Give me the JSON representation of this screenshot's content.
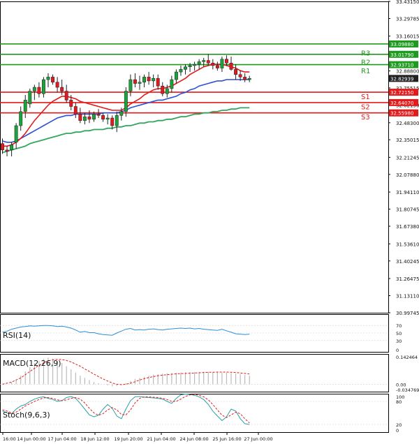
{
  "colors": {
    "bull": "#19a33a",
    "bear": "#e4191d",
    "wick": "#222222",
    "resistance": "#1e9b1e",
    "support": "#e41a1a",
    "ma_fast": "#e41a1a",
    "ma_mid": "#2d4fd6",
    "ma_slow": "#33a55c",
    "rsi": "#2b8fd6",
    "macd_hist": "#bbbbbb",
    "macd_signal": "#e41a1a",
    "stoch_main": "#2aa0a8",
    "stoch_signal": "#e41a1a",
    "axis_text": "#111111",
    "frame": "#000000"
  },
  "chart_data": {
    "type": "candlestick",
    "title": "",
    "x_ticks": [
      "16:00",
      "14 Jun 00:00",
      "17 Jun 04:00",
      "18 Jun 12:00",
      "19 Jun 20:00",
      "21 Jun 04:00",
      "24 Jun 08:00",
      "25 Jun 16:00",
      "27 Jun 00:00"
    ],
    "y_ticks": [
      "33.43150",
      "33.29785",
      "33.16015",
      "32.88800",
      "32.75515",
      "32.62150",
      "32.48300",
      "32.35015",
      "32.21245",
      "32.07880",
      "31.94110",
      "31.80745",
      "31.67380",
      "31.53610",
      "31.40245",
      "31.26475",
      "31.13110",
      "30.99745"
    ],
    "y_range": [
      30.99745,
      33.4315
    ],
    "price_levels": [
      {
        "name": "R3",
        "value": 33.0179,
        "kind": "resistance",
        "price_label": "33.01790"
      },
      {
        "name": "R2",
        "value": 32.9371,
        "kind": "resistance",
        "price_label": "32.93710"
      },
      {
        "name": "S1",
        "value": 32.7215,
        "kind": "support",
        "price_label": "32.72150"
      },
      {
        "name": "S2",
        "value": 32.6407,
        "kind": "support",
        "price_label": "32.64070"
      },
      {
        "name": "S3",
        "value": 32.5598,
        "kind": "support",
        "price_label": "32.55980"
      }
    ],
    "level_name_positions": [
      {
        "name": "R3",
        "value": 33.03
      },
      {
        "name": "R2",
        "value": 32.96
      },
      {
        "name": "R1",
        "value": 32.89
      },
      {
        "name": "S1",
        "value": 32.69
      },
      {
        "name": "S2",
        "value": 32.61
      },
      {
        "name": "S3",
        "value": 32.53
      }
    ],
    "extra_lines": [
      {
        "value": 33.0988,
        "price_label": "33.09880",
        "kind": "resistance"
      }
    ],
    "current_price": {
      "value": 32.82939,
      "price_label": "32.82939"
    },
    "candles": [
      {
        "o": 32.32,
        "h": 32.36,
        "l": 32.24,
        "c": 32.27
      },
      {
        "o": 32.27,
        "h": 32.3,
        "l": 32.22,
        "c": 32.26
      },
      {
        "o": 32.27,
        "h": 32.33,
        "l": 32.22,
        "c": 32.31
      },
      {
        "o": 32.33,
        "h": 32.48,
        "l": 32.28,
        "c": 32.46
      },
      {
        "o": 32.46,
        "h": 32.61,
        "l": 32.42,
        "c": 32.57
      },
      {
        "o": 32.57,
        "h": 32.7,
        "l": 32.52,
        "c": 32.66
      },
      {
        "o": 32.63,
        "h": 32.75,
        "l": 32.6,
        "c": 32.73
      },
      {
        "o": 32.73,
        "h": 32.78,
        "l": 32.66,
        "c": 32.76
      },
      {
        "o": 32.76,
        "h": 32.8,
        "l": 32.68,
        "c": 32.71
      },
      {
        "o": 32.71,
        "h": 32.84,
        "l": 32.68,
        "c": 32.82
      },
      {
        "o": 32.82,
        "h": 32.87,
        "l": 32.76,
        "c": 32.84
      },
      {
        "o": 32.84,
        "h": 32.86,
        "l": 32.78,
        "c": 32.8
      },
      {
        "o": 32.8,
        "h": 32.84,
        "l": 32.72,
        "c": 32.76
      },
      {
        "o": 32.76,
        "h": 32.82,
        "l": 32.7,
        "c": 32.73
      },
      {
        "o": 32.73,
        "h": 32.78,
        "l": 32.64,
        "c": 32.66
      },
      {
        "o": 32.66,
        "h": 32.7,
        "l": 32.58,
        "c": 32.61
      },
      {
        "o": 32.61,
        "h": 32.64,
        "l": 32.52,
        "c": 32.55
      },
      {
        "o": 32.55,
        "h": 32.6,
        "l": 32.48,
        "c": 32.5
      },
      {
        "o": 32.5,
        "h": 32.56,
        "l": 32.47,
        "c": 32.53
      },
      {
        "o": 32.53,
        "h": 32.58,
        "l": 32.48,
        "c": 32.51
      },
      {
        "o": 32.51,
        "h": 32.57,
        "l": 32.49,
        "c": 32.55
      },
      {
        "o": 32.55,
        "h": 32.59,
        "l": 32.52,
        "c": 32.54
      },
      {
        "o": 32.54,
        "h": 32.56,
        "l": 32.49,
        "c": 32.51
      },
      {
        "o": 32.51,
        "h": 32.55,
        "l": 32.47,
        "c": 32.52
      },
      {
        "o": 32.52,
        "h": 32.54,
        "l": 32.43,
        "c": 32.46
      },
      {
        "o": 32.46,
        "h": 32.57,
        "l": 32.41,
        "c": 32.54
      },
      {
        "o": 32.54,
        "h": 32.6,
        "l": 32.5,
        "c": 32.57
      },
      {
        "o": 32.57,
        "h": 32.76,
        "l": 32.53,
        "c": 32.73
      },
      {
        "o": 32.73,
        "h": 32.86,
        "l": 32.69,
        "c": 32.82
      },
      {
        "o": 32.82,
        "h": 32.87,
        "l": 32.76,
        "c": 32.79
      },
      {
        "o": 32.79,
        "h": 32.85,
        "l": 32.74,
        "c": 32.8
      },
      {
        "o": 32.8,
        "h": 32.86,
        "l": 32.76,
        "c": 32.84
      },
      {
        "o": 32.84,
        "h": 32.88,
        "l": 32.78,
        "c": 32.81
      },
      {
        "o": 32.81,
        "h": 32.86,
        "l": 32.76,
        "c": 32.83
      },
      {
        "o": 32.83,
        "h": 32.86,
        "l": 32.74,
        "c": 32.77
      },
      {
        "o": 32.77,
        "h": 32.8,
        "l": 32.69,
        "c": 32.71
      },
      {
        "o": 32.71,
        "h": 32.78,
        "l": 32.68,
        "c": 32.75
      },
      {
        "o": 32.75,
        "h": 32.85,
        "l": 32.72,
        "c": 32.82
      },
      {
        "o": 32.82,
        "h": 32.9,
        "l": 32.79,
        "c": 32.88
      },
      {
        "o": 32.88,
        "h": 32.93,
        "l": 32.85,
        "c": 32.9
      },
      {
        "o": 32.9,
        "h": 32.94,
        "l": 32.86,
        "c": 32.92
      },
      {
        "o": 32.92,
        "h": 32.95,
        "l": 32.88,
        "c": 32.93
      },
      {
        "o": 32.93,
        "h": 32.96,
        "l": 32.89,
        "c": 32.94
      },
      {
        "o": 32.94,
        "h": 32.98,
        "l": 32.9,
        "c": 32.96
      },
      {
        "o": 32.96,
        "h": 32.99,
        "l": 32.92,
        "c": 32.97
      },
      {
        "o": 32.97,
        "h": 33.02,
        "l": 32.93,
        "c": 32.95
      },
      {
        "o": 32.95,
        "h": 32.98,
        "l": 32.9,
        "c": 32.93
      },
      {
        "o": 32.93,
        "h": 32.96,
        "l": 32.89,
        "c": 32.91
      },
      {
        "o": 32.91,
        "h": 33.0,
        "l": 32.88,
        "c": 32.98
      },
      {
        "o": 32.98,
        "h": 33.01,
        "l": 32.93,
        "c": 32.95
      },
      {
        "o": 32.95,
        "h": 33.0,
        "l": 32.89,
        "c": 32.9
      },
      {
        "o": 32.9,
        "h": 32.94,
        "l": 32.82,
        "c": 32.86
      },
      {
        "o": 32.86,
        "h": 32.89,
        "l": 32.81,
        "c": 32.84
      },
      {
        "o": 32.84,
        "h": 32.87,
        "l": 32.8,
        "c": 32.82
      },
      {
        "o": 32.82,
        "h": 32.85,
        "l": 32.8,
        "c": 32.83
      }
    ],
    "ma_fast": [
      32.3,
      32.3,
      32.31,
      32.33,
      32.36,
      32.4,
      32.45,
      32.5,
      32.54,
      32.58,
      32.62,
      32.65,
      32.67,
      32.69,
      32.69,
      32.68,
      32.67,
      32.65,
      32.64,
      32.63,
      32.62,
      32.61,
      32.6,
      32.59,
      32.58,
      32.58,
      32.58,
      32.6,
      32.63,
      32.65,
      32.67,
      32.7,
      32.72,
      32.74,
      32.75,
      32.75,
      32.76,
      32.77,
      32.79,
      32.81,
      32.83,
      32.86,
      32.88,
      32.9,
      32.92,
      32.93,
      32.94,
      32.94,
      32.94,
      32.93,
      32.92,
      32.91,
      32.89,
      32.88,
      32.88
    ],
    "ma_mid": [
      32.34,
      32.33,
      32.33,
      32.34,
      32.36,
      32.38,
      32.4,
      32.42,
      32.44,
      32.46,
      32.48,
      32.5,
      32.52,
      32.53,
      32.54,
      32.54,
      32.55,
      32.55,
      32.55,
      32.55,
      32.55,
      32.55,
      32.56,
      32.56,
      32.56,
      32.56,
      32.57,
      32.58,
      32.6,
      32.61,
      32.62,
      32.63,
      32.64,
      32.65,
      32.66,
      32.66,
      32.67,
      32.68,
      32.69,
      32.71,
      32.72,
      32.74,
      32.75,
      32.77,
      32.78,
      32.79,
      32.8,
      32.81,
      32.81,
      32.82,
      32.82,
      32.82,
      32.82,
      32.82,
      32.82
    ],
    "ma_slow": [
      32.25,
      32.26,
      32.27,
      32.28,
      32.29,
      32.3,
      32.32,
      32.33,
      32.34,
      32.35,
      32.36,
      32.37,
      32.38,
      32.39,
      32.4,
      32.4,
      32.41,
      32.41,
      32.42,
      32.42,
      32.43,
      32.43,
      32.43,
      32.44,
      32.44,
      32.45,
      32.45,
      32.46,
      32.46,
      32.47,
      32.48,
      32.48,
      32.49,
      32.49,
      32.5,
      32.5,
      32.51,
      32.51,
      32.52,
      32.53,
      32.53,
      32.54,
      32.55,
      32.55,
      32.56,
      32.56,
      32.57,
      32.57,
      32.58,
      32.58,
      32.59,
      32.59,
      32.6,
      32.6,
      32.6
    ],
    "indicators": [
      {
        "name": "RSI(14)",
        "levels": [
          "70",
          "50",
          "30",
          "0"
        ],
        "levels_values": [
          70,
          50,
          30,
          0
        ],
        "range": [
          0,
          100
        ],
        "series": [
          {
            "type": "line",
            "color_key": "rsi",
            "values": [
              52,
              55,
              60,
              63,
              66,
              67,
              69,
              68,
              69,
              70,
              70,
              69,
              67,
              68,
              66,
              63,
              58,
              52,
              54,
              51,
              51,
              48,
              46,
              45,
              44,
              50,
              55,
              60,
              62,
              58,
              59,
              58,
              60,
              61,
              59,
              58,
              60,
              61,
              62,
              63,
              62,
              63,
              61,
              62,
              60,
              59,
              58,
              57,
              60,
              56,
              52,
              48,
              47,
              46,
              47
            ]
          }
        ]
      },
      {
        "name": "MACD(12,26,9)",
        "levels": [
          "0.142464",
          "0.00",
          "-0.034769"
        ],
        "levels_values": [
          0.142464,
          0.0,
          -0.034769
        ],
        "range": [
          -0.034769,
          0.142464
        ],
        "series": [
          {
            "type": "histogram",
            "color_key": "macd_hist",
            "values": [
              0.0,
              0.0,
              0.01,
              0.02,
              0.04,
              0.06,
              0.08,
              0.1,
              0.11,
              0.12,
              0.125,
              0.12,
              0.11,
              0.1,
              0.085,
              0.07,
              0.055,
              0.04,
              0.03,
              0.02,
              0.01,
              0.005,
              0.0,
              -0.005,
              -0.01,
              -0.008,
              -0.004,
              0.005,
              0.015,
              0.025,
              0.03,
              0.035,
              0.04,
              0.045,
              0.048,
              0.05,
              0.052,
              0.053,
              0.054,
              0.055,
              0.056,
              0.057,
              0.058,
              0.058,
              0.058,
              0.058,
              0.057,
              0.056,
              0.055,
              0.054,
              0.052,
              0.05,
              0.048,
              0.044,
              0.04
            ]
          },
          {
            "type": "line",
            "color_key": "macd_signal",
            "values": [
              0.0,
              0.005,
              0.01,
              0.02,
              0.03,
              0.045,
              0.06,
              0.075,
              0.09,
              0.1,
              0.11,
              0.115,
              0.117,
              0.116,
              0.112,
              0.105,
              0.095,
              0.085,
              0.072,
              0.06,
              0.048,
              0.036,
              0.025,
              0.015,
              0.006,
              0.0,
              -0.002,
              0.0,
              0.005,
              0.012,
              0.02,
              0.026,
              0.032,
              0.036,
              0.04,
              0.043,
              0.045,
              0.047,
              0.049,
              0.05,
              0.051,
              0.052,
              0.053,
              0.054,
              0.055,
              0.056,
              0.056,
              0.057,
              0.057,
              0.057,
              0.056,
              0.055,
              0.053,
              0.051,
              0.048
            ]
          }
        ]
      },
      {
        "name": "Stoch(9,6,3)",
        "levels": [
          "100",
          "80",
          "20",
          "0"
        ],
        "levels_values": [
          100,
          80,
          20,
          0
        ],
        "range": [
          0,
          100
        ],
        "series": [
          {
            "type": "line",
            "color_key": "stoch_main",
            "values": [
              55,
              50,
              48,
              60,
              68,
              72,
              80,
              86,
              90,
              92,
              88,
              85,
              80,
              82,
              90,
              93,
              88,
              75,
              60,
              45,
              40,
              44,
              60,
              72,
              62,
              42,
              35,
              60,
              82,
              92,
              93,
              91,
              90,
              89,
              88,
              86,
              80,
              75,
              88,
              97,
              99,
              98,
              96,
              92,
              85,
              72,
              55,
              42,
              30,
              40,
              60,
              55,
              35,
              22,
              20
            ]
          },
          {
            "type": "line",
            "color_key": "stoch_signal",
            "values": [
              58,
              55,
              50,
              52,
              60,
              68,
              74,
              80,
              85,
              89,
              90,
              88,
              84,
              82,
              84,
              88,
              90,
              86,
              76,
              62,
              50,
              44,
              48,
              58,
              64,
              58,
              46,
              45,
              58,
              76,
              88,
              92,
              92,
              91,
              90,
              88,
              85,
              80,
              80,
              86,
              93,
              97,
              98,
              96,
              92,
              84,
              72,
              58,
              44,
              38,
              45,
              52,
              48,
              35,
              24
            ]
          }
        ]
      }
    ]
  }
}
